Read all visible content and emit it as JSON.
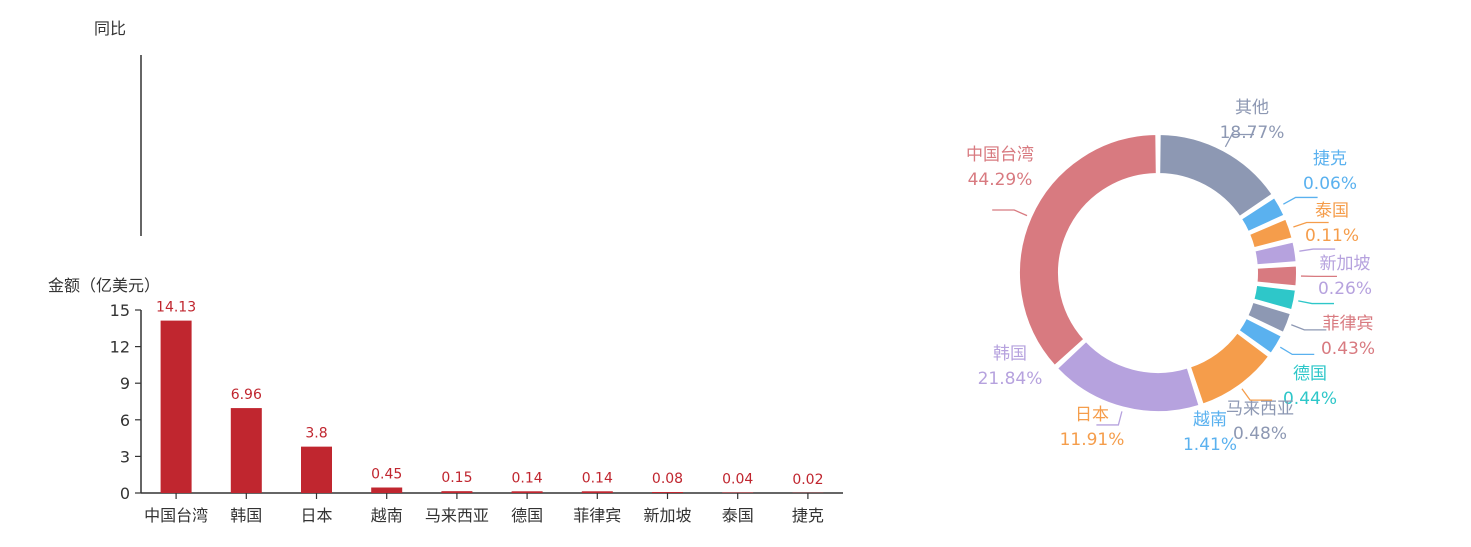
{
  "chart_data": [
    {
      "type": "bar",
      "ylabel_top": "同比",
      "ylabel": "金额（亿美元）",
      "categories": [
        "中国台湾",
        "韩国",
        "日本",
        "越南",
        "马来西亚",
        "德国",
        "菲律宾",
        "新加坡",
        "泰国",
        "捷克"
      ],
      "values": [
        14.13,
        6.96,
        3.8,
        0.45,
        0.15,
        0.14,
        0.14,
        0.08,
        0.04,
        0.02
      ],
      "value_labels": [
        "14.13",
        "6.96",
        "3.8",
        "0.45",
        "0.15",
        "0.14",
        "0.14",
        "0.08",
        "0.04",
        "0.02"
      ],
      "yticks": [
        "0",
        "3",
        "6",
        "9",
        "12",
        "15"
      ],
      "ylim": [
        0,
        15
      ],
      "bar_color": "#c0262f",
      "grid": false
    },
    {
      "type": "pie",
      "donut": true,
      "slices": [
        {
          "name": "其他",
          "percent_label": "18.77%",
          "value": 18.77,
          "color": "#8d98b3"
        },
        {
          "name": "捷克",
          "percent_label": "0.06%",
          "value": 0.06,
          "color": "#5ab1ef"
        },
        {
          "name": "泰国",
          "percent_label": "0.11%",
          "value": 0.11,
          "color": "#f59d4b"
        },
        {
          "name": "新加坡",
          "percent_label": "0.26%",
          "value": 0.26,
          "color": "#b6a2de"
        },
        {
          "name": "菲律宾",
          "percent_label": "0.43%",
          "value": 0.43,
          "color": "#d87a80"
        },
        {
          "name": "德国",
          "percent_label": "0.44%",
          "value": 0.44,
          "color": "#2ec7c9"
        },
        {
          "name": "马来西亚",
          "percent_label": "0.48%",
          "value": 0.48,
          "color": "#8d98b3"
        },
        {
          "name": "越南",
          "percent_label": "1.41%",
          "value": 1.41,
          "color": "#5ab1ef"
        },
        {
          "name": "日本",
          "percent_label": "11.91%",
          "value": 11.91,
          "color": "#f59d4b"
        },
        {
          "name": "韩国",
          "percent_label": "21.84%",
          "value": 21.84,
          "color": "#b6a2de"
        },
        {
          "name": "中国台湾",
          "percent_label": "44.29%",
          "value": 44.29,
          "color": "#d87a80"
        }
      ],
      "legend": "none"
    }
  ]
}
